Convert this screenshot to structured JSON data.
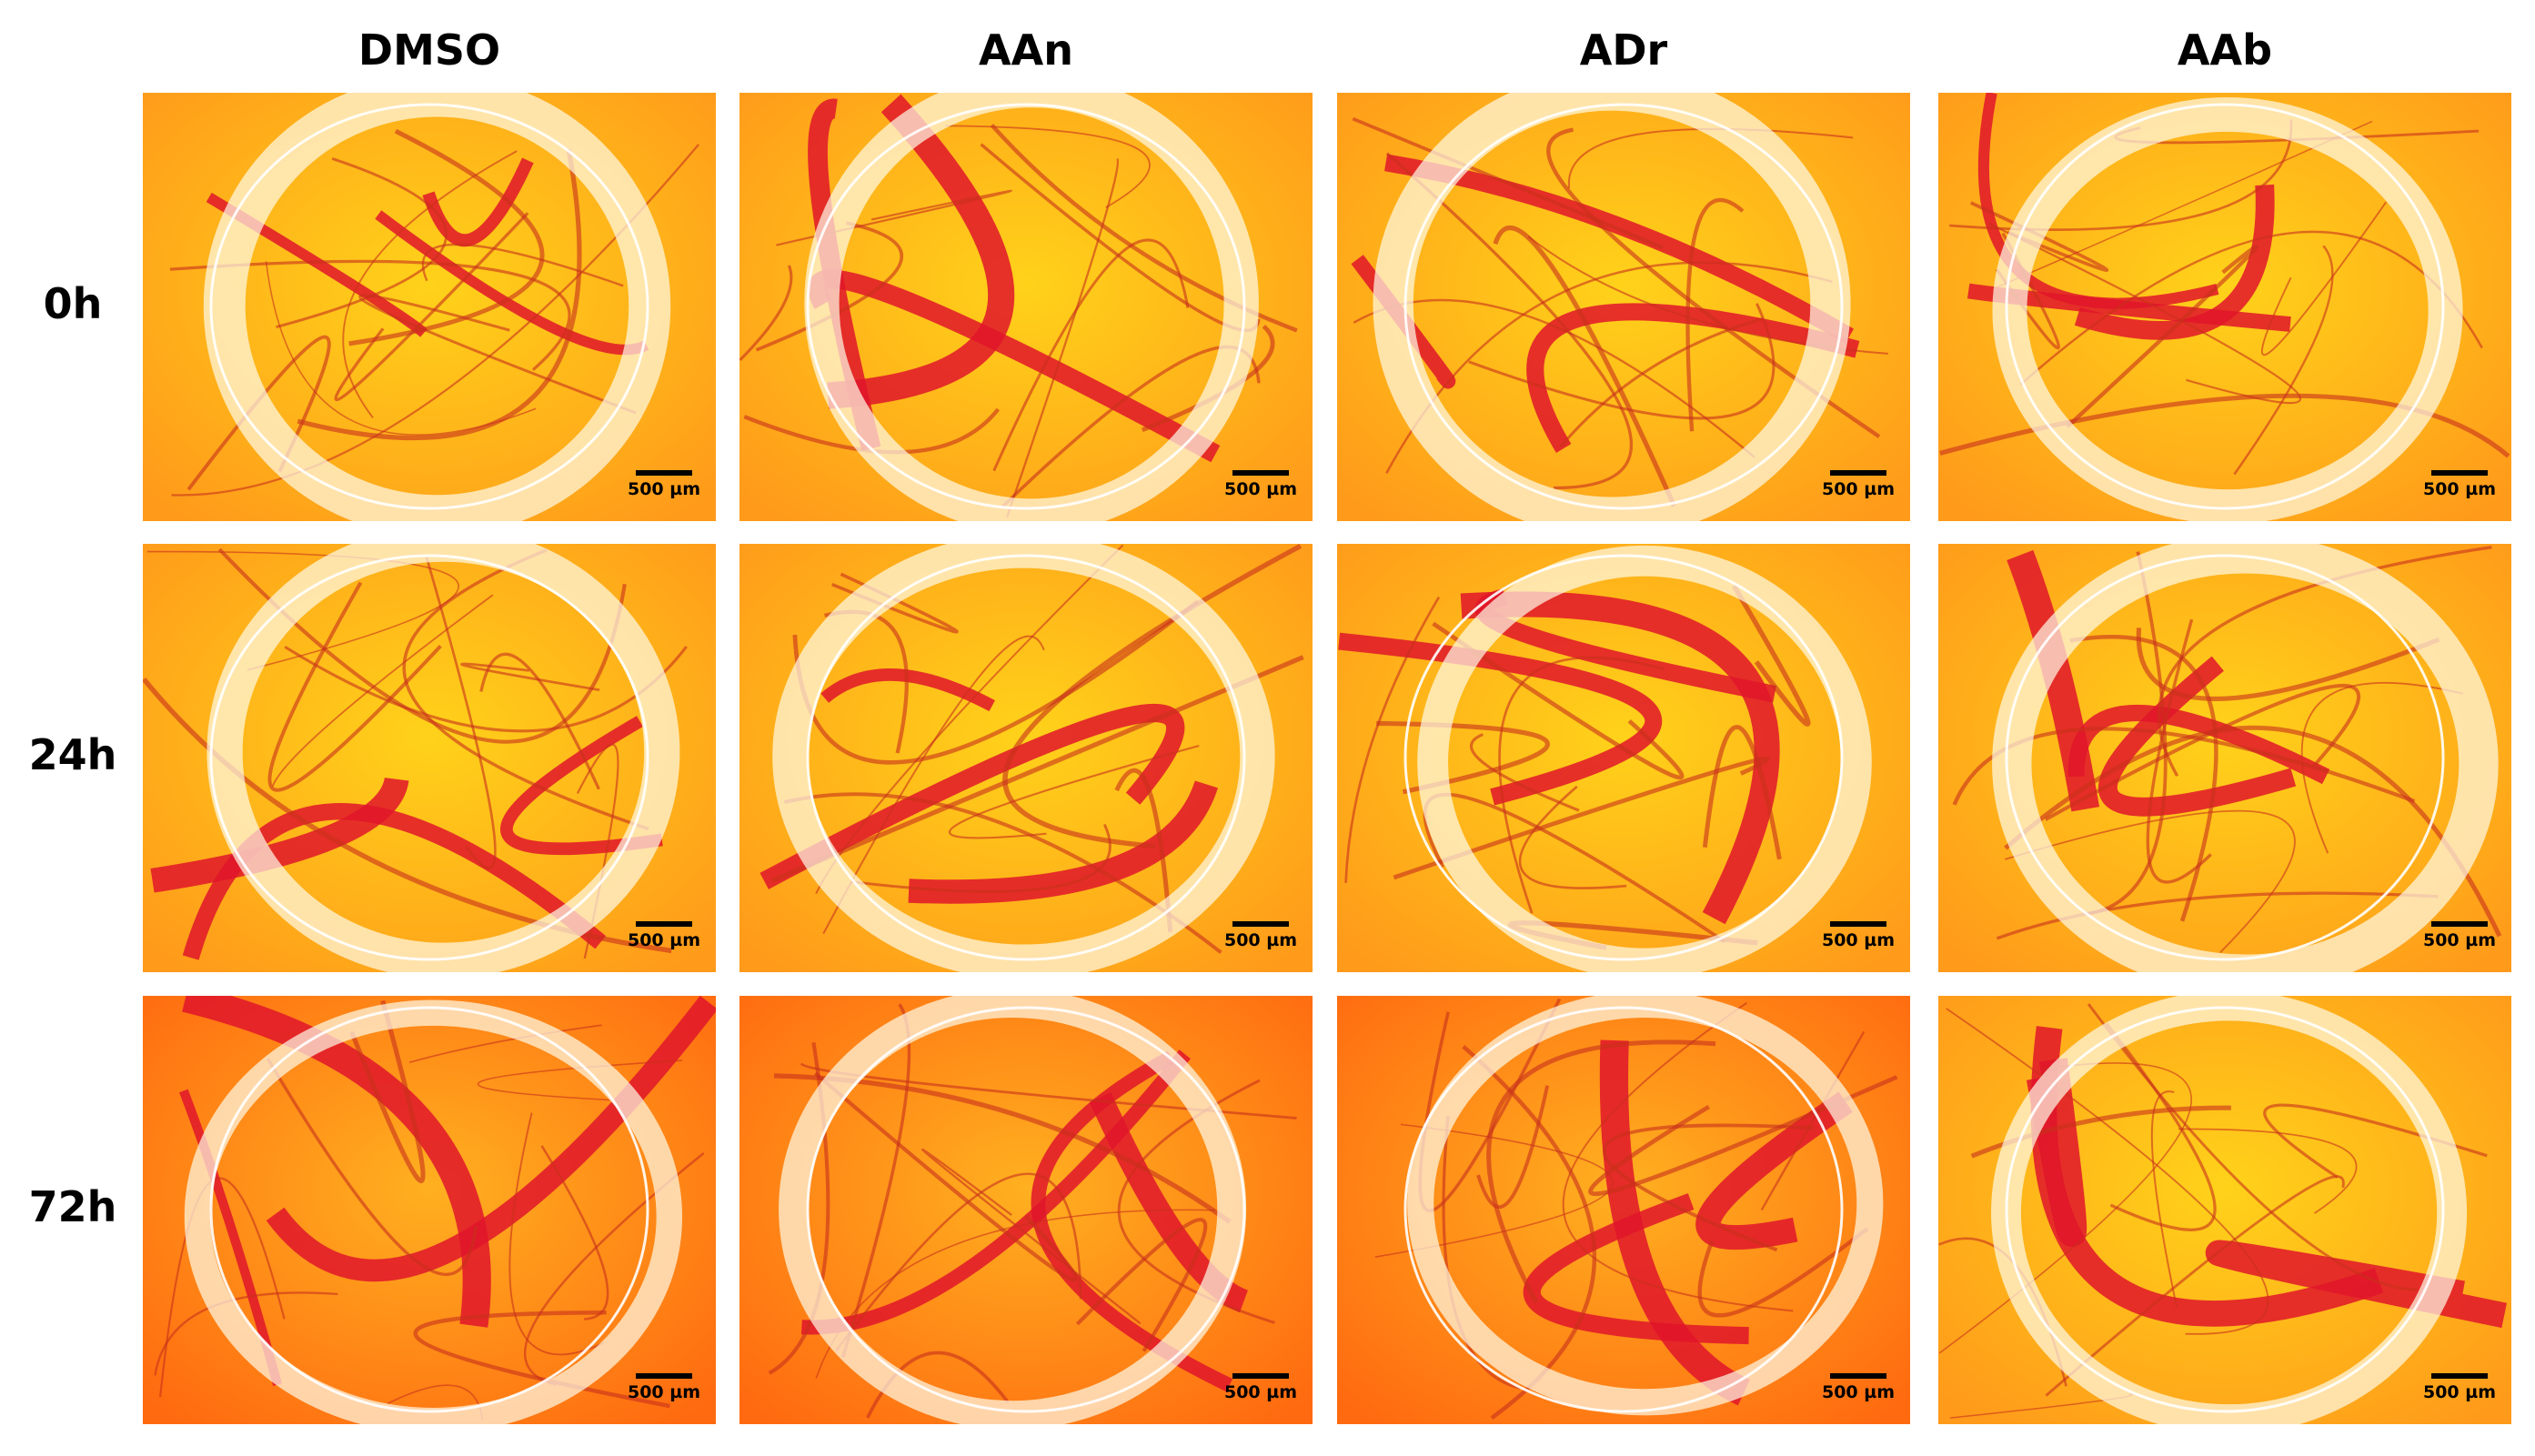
{
  "columns": [
    "DMSO",
    "AAn",
    "ADr",
    "AAb"
  ],
  "rows": [
    {
      "label": "0h",
      "panels": [
        {
          "scale_bar": "500 µm"
        },
        {
          "scale_bar": "500 µm"
        },
        {
          "scale_bar": "500 µm"
        },
        {
          "scale_bar": "500 µm"
        }
      ]
    },
    {
      "label": "24h",
      "panels": [
        {
          "scale_bar": "500 µm"
        },
        {
          "scale_bar": "500 µm"
        },
        {
          "scale_bar": "500 µm"
        },
        {
          "scale_bar": "500 µm"
        }
      ]
    },
    {
      "label": "72h",
      "panels": [
        {
          "scale_bar": "500 µm"
        },
        {
          "scale_bar": "500 µm"
        },
        {
          "scale_bar": "500 µm"
        },
        {
          "scale_bar": "500 µm"
        }
      ]
    }
  ]
}
